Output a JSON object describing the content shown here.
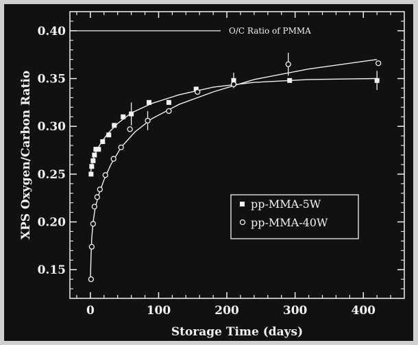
{
  "chart_data": {
    "type": "scatter",
    "title": "",
    "xlabel": "Storage Time (days)",
    "ylabel": "XPS Oxygen/Carbon Ratio",
    "xlim": [
      -30,
      460
    ],
    "ylim": [
      0.12,
      0.42
    ],
    "xticks": [
      0,
      100,
      200,
      300,
      400
    ],
    "xtick_labels": [
      "0",
      "100",
      "200",
      "300",
      "400"
    ],
    "yticks": [
      0.15,
      0.2,
      0.25,
      0.3,
      0.35,
      0.4
    ],
    "ytick_labels": [
      "0.15",
      "0.20",
      "0.25",
      "0.30",
      "0.35",
      "0.40"
    ],
    "grid": false,
    "legend_position": "lower-right",
    "reference_line": {
      "label": "O/C Ratio of PMMA",
      "y": 0.4
    },
    "series": [
      {
        "name": "pp-MMA-5W",
        "marker": "filled-square",
        "points": [
          {
            "x": 1,
            "y": 0.25
          },
          {
            "x": 2,
            "y": 0.258
          },
          {
            "x": 4,
            "y": 0.264
          },
          {
            "x": 6,
            "y": 0.27
          },
          {
            "x": 8,
            "y": 0.276
          },
          {
            "x": 12,
            "y": 0.276
          },
          {
            "x": 18,
            "y": 0.284
          },
          {
            "x": 27,
            "y": 0.291
          },
          {
            "x": 35,
            "y": 0.301
          },
          {
            "x": 48,
            "y": 0.31
          },
          {
            "x": 60,
            "y": 0.313,
            "err": 0.012
          },
          {
            "x": 86,
            "y": 0.325
          },
          {
            "x": 115,
            "y": 0.325
          },
          {
            "x": 155,
            "y": 0.339
          },
          {
            "x": 210,
            "y": 0.348,
            "err": 0.008
          },
          {
            "x": 292,
            "y": 0.348
          },
          {
            "x": 420,
            "y": 0.348,
            "err": 0.01
          }
        ],
        "fit": [
          {
            "x": 0,
            "y": 0.25
          },
          {
            "x": 3,
            "y": 0.263
          },
          {
            "x": 8,
            "y": 0.273
          },
          {
            "x": 15,
            "y": 0.282
          },
          {
            "x": 25,
            "y": 0.292
          },
          {
            "x": 40,
            "y": 0.303
          },
          {
            "x": 60,
            "y": 0.314
          },
          {
            "x": 90,
            "y": 0.324
          },
          {
            "x": 130,
            "y": 0.333
          },
          {
            "x": 180,
            "y": 0.341
          },
          {
            "x": 240,
            "y": 0.346
          },
          {
            "x": 320,
            "y": 0.349
          },
          {
            "x": 420,
            "y": 0.35
          }
        ]
      },
      {
        "name": "pp-MMA-40W",
        "marker": "open-circle",
        "points": [
          {
            "x": 1,
            "y": 0.14
          },
          {
            "x": 2,
            "y": 0.174
          },
          {
            "x": 4,
            "y": 0.198
          },
          {
            "x": 6,
            "y": 0.216
          },
          {
            "x": 10,
            "y": 0.226
          },
          {
            "x": 14,
            "y": 0.234
          },
          {
            "x": 22,
            "y": 0.249
          },
          {
            "x": 34,
            "y": 0.266
          },
          {
            "x": 45,
            "y": 0.278
          },
          {
            "x": 58,
            "y": 0.297
          },
          {
            "x": 84,
            "y": 0.306,
            "err": 0.01
          },
          {
            "x": 115,
            "y": 0.316
          },
          {
            "x": 157,
            "y": 0.336
          },
          {
            "x": 210,
            "y": 0.344
          },
          {
            "x": 290,
            "y": 0.365,
            "err": 0.012
          },
          {
            "x": 422,
            "y": 0.366
          }
        ],
        "fit": [
          {
            "x": 0,
            "y": 0.14
          },
          {
            "x": 1,
            "y": 0.165
          },
          {
            "x": 2,
            "y": 0.183
          },
          {
            "x": 4,
            "y": 0.2
          },
          {
            "x": 7,
            "y": 0.214
          },
          {
            "x": 12,
            "y": 0.228
          },
          {
            "x": 20,
            "y": 0.244
          },
          {
            "x": 30,
            "y": 0.26
          },
          {
            "x": 45,
            "y": 0.278
          },
          {
            "x": 65,
            "y": 0.294
          },
          {
            "x": 90,
            "y": 0.308
          },
          {
            "x": 130,
            "y": 0.323
          },
          {
            "x": 180,
            "y": 0.336
          },
          {
            "x": 240,
            "y": 0.349
          },
          {
            "x": 320,
            "y": 0.36
          },
          {
            "x": 420,
            "y": 0.37
          }
        ]
      }
    ]
  }
}
